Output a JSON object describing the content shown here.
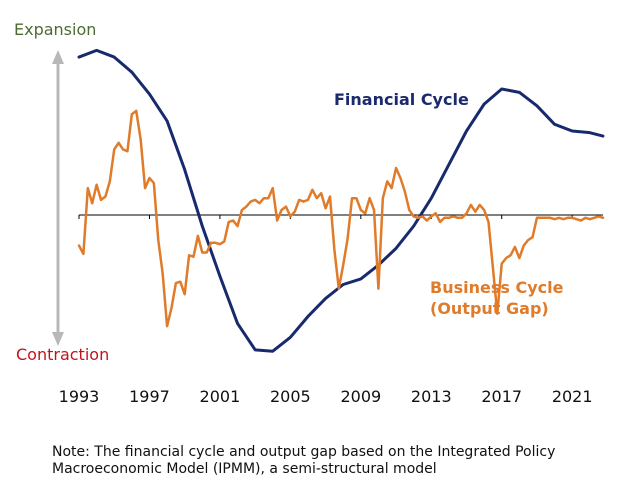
{
  "labels": {
    "expansion": "Expansion",
    "contraction": "Contraction",
    "financial_cycle": "Financial Cycle",
    "business_cycle_line1": "Business Cycle",
    "business_cycle_line2": "(Output Gap)"
  },
  "note": {
    "line1": "Note: The financial cycle and output gap based on the Integrated Policy",
    "line2": "Macroeconomic Model (IPMM), a semi-structural model"
  },
  "colors": {
    "financial_cycle": "#172a6e",
    "business_cycle": "#e07b2a",
    "axis": "#000000",
    "arrow": "#b8b8b8"
  },
  "chart_data": {
    "type": "line",
    "xlim": [
      1993,
      2022.75
    ],
    "ylim": [
      -1,
      1
    ],
    "x_ticks": [
      1993,
      1997,
      2001,
      2005,
      2009,
      2013,
      2017,
      2021
    ],
    "x_tick_labels": [
      "1993",
      "1997",
      "2001",
      "2005",
      "2009",
      "2013",
      "2017",
      "2021"
    ],
    "series": [
      {
        "name": "Financial Cycle",
        "x": [
          1993,
          1994,
          1995,
          1996,
          1997,
          1998,
          1999,
          2000,
          2001,
          2002,
          2003,
          2004,
          2005,
          2006,
          2007,
          2008,
          2009,
          2010,
          2011,
          2012,
          2013,
          2014,
          2015,
          2016,
          2017,
          2018,
          2019,
          2020,
          2021,
          2022,
          2022.75
        ],
        "values": [
          0.94,
          0.98,
          0.94,
          0.85,
          0.72,
          0.56,
          0.27,
          -0.08,
          -0.44,
          -0.78,
          -0.97,
          -0.98,
          -0.88,
          -0.73,
          -0.6,
          -0.5,
          -0.46,
          -0.36,
          -0.24,
          -0.08,
          0.1,
          0.3,
          0.5,
          0.66,
          0.75,
          0.73,
          0.65,
          0.54,
          0.5,
          0.49,
          0.47
        ]
      },
      {
        "name": "Business Cycle (Output Gap)",
        "x": [
          1993,
          1993.25,
          1993.5,
          1993.75,
          1994,
          1994.25,
          1994.5,
          1994.75,
          1995,
          1995.25,
          1995.5,
          1995.75,
          1996,
          1996.25,
          1996.5,
          1996.75,
          1997,
          1997.25,
          1997.5,
          1997.75,
          1998,
          1998.25,
          1998.5,
          1998.75,
          1999,
          1999.25,
          1999.5,
          1999.75,
          2000,
          2000.25,
          2000.5,
          2000.75,
          2001,
          2001.25,
          2001.5,
          2001.75,
          2002,
          2002.25,
          2002.5,
          2002.75,
          2003,
          2003.25,
          2003.5,
          2003.75,
          2004,
          2004.25,
          2004.5,
          2004.75,
          2005,
          2005.25,
          2005.5,
          2005.75,
          2006,
          2006.25,
          2006.5,
          2006.75,
          2007,
          2007.25,
          2007.5,
          2007.75,
          2008,
          2008.25,
          2008.5,
          2008.75,
          2009,
          2009.25,
          2009.5,
          2009.75,
          2010,
          2010.25,
          2010.5,
          2010.75,
          2011,
          2011.25,
          2011.5,
          2011.75,
          2012,
          2012.25,
          2012.5,
          2012.75,
          2013,
          2013.25,
          2013.5,
          2013.75,
          2014,
          2014.25,
          2014.5,
          2014.75,
          2015,
          2015.25,
          2015.5,
          2015.75,
          2016,
          2016.25,
          2016.5,
          2016.75,
          2017,
          2017.25,
          2017.5,
          2017.75,
          2018,
          2018.25,
          2018.5,
          2018.75,
          2019,
          2019.25,
          2019.5,
          2019.75,
          2020,
          2020.25,
          2020.5,
          2020.75,
          2021,
          2021.25,
          2021.5,
          2021.75,
          2022,
          2022.25,
          2022.5,
          2022.75
        ],
        "values": [
          -0.22,
          -0.28,
          0.16,
          0.07,
          0.18,
          0.09,
          0.11,
          0.2,
          0.39,
          0.43,
          0.39,
          0.38,
          0.6,
          0.62,
          0.45,
          0.16,
          0.22,
          0.19,
          -0.18,
          -0.42,
          -0.8,
          -0.67,
          -0.49,
          -0.48,
          -0.57,
          -0.29,
          -0.3,
          -0.15,
          -0.27,
          -0.27,
          -0.2,
          -0.2,
          -0.21,
          -0.19,
          -0.05,
          -0.04,
          -0.08,
          0.03,
          0.05,
          0.08,
          0.09,
          0.07,
          0.1,
          0.1,
          0.16,
          -0.04,
          0.03,
          0.05,
          -0.01,
          0.02,
          0.09,
          0.08,
          0.09,
          0.15,
          0.1,
          0.13,
          0.04,
          0.11,
          -0.25,
          -0.53,
          -0.36,
          -0.17,
          0.1,
          0.1,
          0.03,
          0.01,
          0.1,
          0.03,
          -0.53,
          0.1,
          0.2,
          0.16,
          0.28,
          0.22,
          0.14,
          0.03,
          -0.01,
          -0.02,
          -0.01,
          -0.04,
          -0.01,
          0.01,
          -0.05,
          -0.02,
          -0.02,
          -0.01,
          -0.02,
          -0.02,
          0.01,
          0.06,
          0.02,
          0.06,
          0.03,
          -0.05,
          -0.38,
          -0.71,
          -0.35,
          -0.31,
          -0.29,
          -0.23,
          -0.31,
          -0.22,
          -0.18,
          -0.16,
          -0.02,
          -0.02,
          -0.02,
          -0.02,
          -0.03,
          -0.02,
          -0.03,
          -0.02,
          -0.02,
          -0.03,
          -0.04,
          -0.02,
          -0.03,
          -0.02,
          -0.01,
          -0.02
        ]
      }
    ]
  }
}
